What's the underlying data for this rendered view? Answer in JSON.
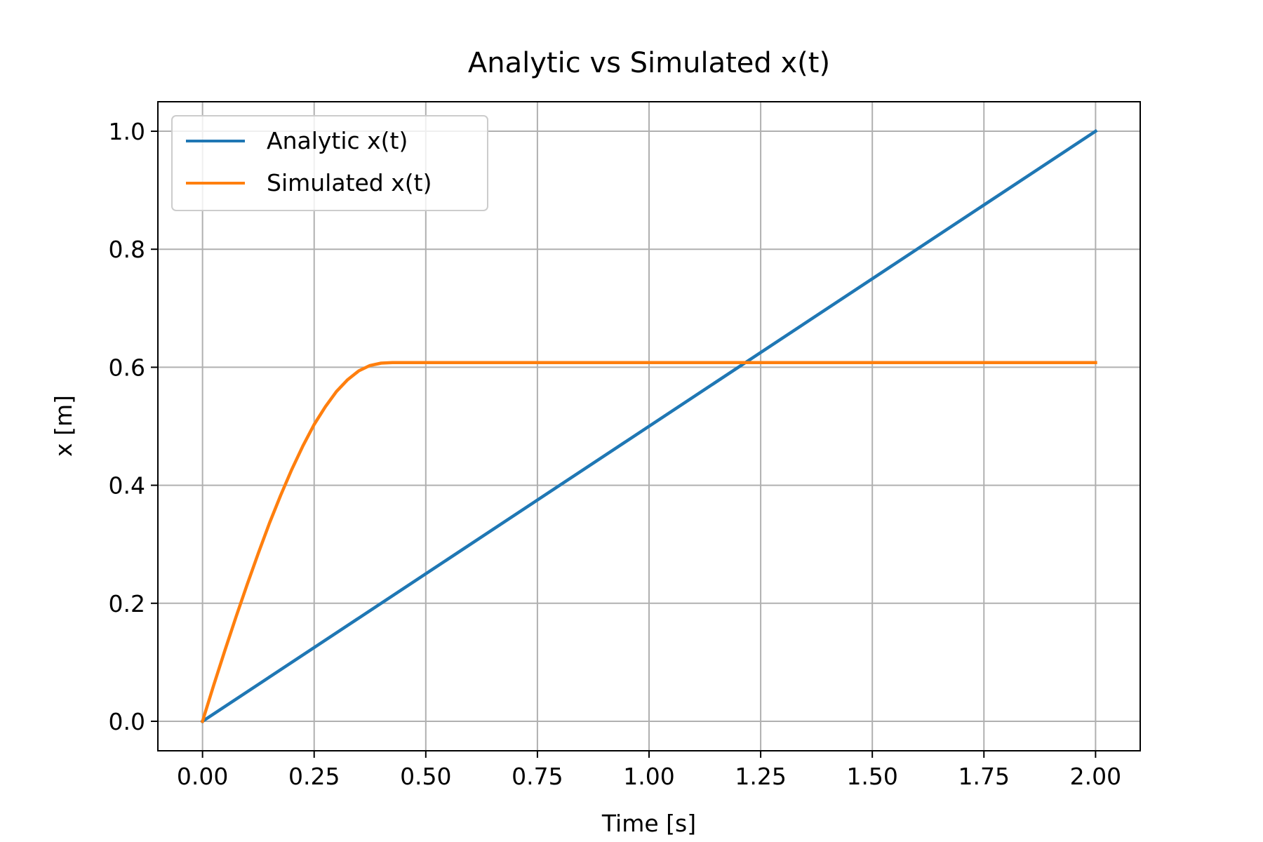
{
  "chart_data": {
    "type": "line",
    "title": "Analytic vs Simulated x(t)",
    "xlabel": "Time [s]",
    "ylabel": "x [m]",
    "xlim": [
      -0.1,
      2.1
    ],
    "ylim": [
      -0.05,
      1.05
    ],
    "xticks": [
      0.0,
      0.25,
      0.5,
      0.75,
      1.0,
      1.25,
      1.5,
      1.75,
      2.0
    ],
    "xtick_labels": [
      "0.00",
      "0.25",
      "0.50",
      "0.75",
      "1.00",
      "1.25",
      "1.50",
      "1.75",
      "2.00"
    ],
    "yticks": [
      0.0,
      0.2,
      0.4,
      0.6,
      0.8,
      1.0
    ],
    "ytick_labels": [
      "0.0",
      "0.2",
      "0.4",
      "0.6",
      "0.8",
      "1.0"
    ],
    "grid": true,
    "legend_position": "top-left",
    "series": [
      {
        "name": "Analytic x(t)",
        "color": "#1f77b4",
        "x": [
          0.0,
          2.0
        ],
        "y": [
          0.0,
          1.0
        ]
      },
      {
        "name": "Simulated x(t)",
        "color": "#ff7f0e",
        "x": [
          0.0,
          0.025,
          0.05,
          0.075,
          0.1,
          0.125,
          0.15,
          0.175,
          0.2,
          0.225,
          0.25,
          0.275,
          0.3,
          0.325,
          0.35,
          0.375,
          0.4,
          0.425,
          0.45,
          0.5,
          0.75,
          1.0,
          1.25,
          1.5,
          1.75,
          2.0
        ],
        "y": [
          0.0,
          0.061,
          0.12,
          0.177,
          0.232,
          0.285,
          0.336,
          0.383,
          0.427,
          0.467,
          0.503,
          0.533,
          0.559,
          0.579,
          0.594,
          0.603,
          0.607,
          0.608,
          0.608,
          0.608,
          0.608,
          0.608,
          0.608,
          0.608,
          0.608,
          0.608
        ]
      }
    ]
  }
}
